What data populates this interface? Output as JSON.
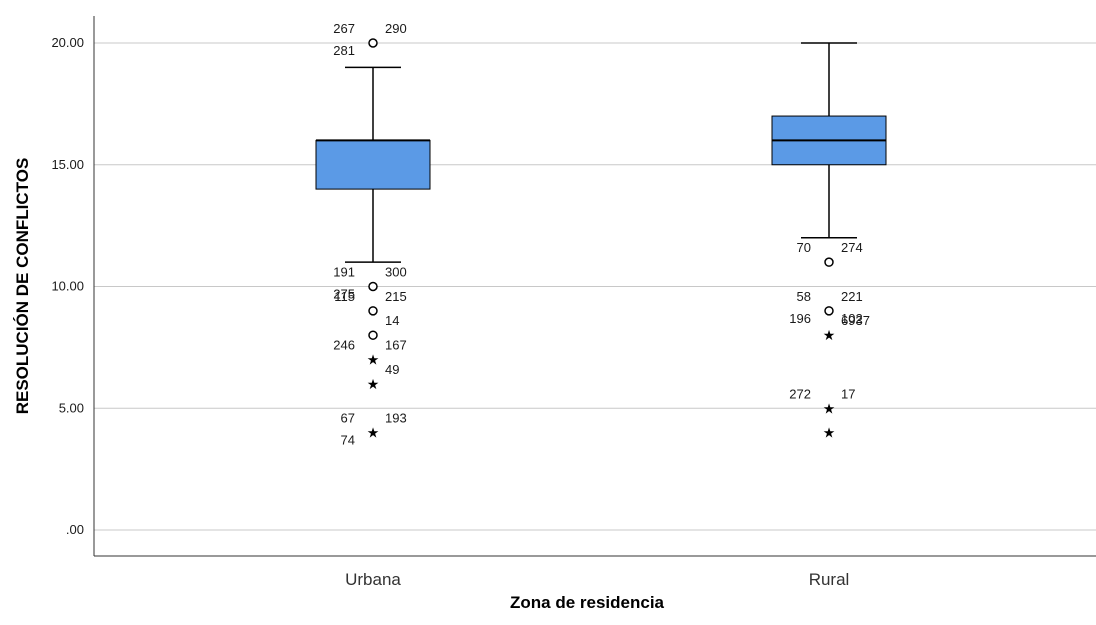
{
  "chart_data": {
    "type": "boxplot",
    "xlabel": "Zona de residencia",
    "ylabel": "RESOLUCIÓN DE CONFLICTOS",
    "ylim": [
      0,
      20.5
    ],
    "yticks": [
      {
        "value": 0,
        "label": ".00"
      },
      {
        "value": 5,
        "label": "5.00"
      },
      {
        "value": 10,
        "label": "10.00"
      },
      {
        "value": 15,
        "label": "15.00"
      },
      {
        "value": 20,
        "label": "20.00"
      }
    ],
    "grid": true,
    "box_color": "#5b9ae6",
    "categories": [
      "Urbana",
      "Rural"
    ],
    "boxes": [
      {
        "category": "Urbana",
        "whisker_low": 11,
        "q1": 14,
        "median": 16,
        "q3": 16,
        "whisker_high": 19,
        "outliers": [
          {
            "value": 20,
            "marker": "circle",
            "labels": [
              "290",
              "267",
              "281"
            ]
          },
          {
            "value": 10,
            "marker": "circle",
            "labels": [
              "300",
              "191",
              "275"
            ]
          },
          {
            "value": 9,
            "marker": "circle",
            "labels": [
              "215",
              "115"
            ]
          },
          {
            "value": 8,
            "marker": "circle",
            "labels": [
              "14"
            ]
          },
          {
            "value": 7,
            "marker": "star",
            "labels": [
              "167",
              "246"
            ]
          },
          {
            "value": 6,
            "marker": "star",
            "labels": [
              "49"
            ]
          },
          {
            "value": 4,
            "marker": "star",
            "labels": [
              "193",
              "67",
              "74"
            ]
          }
        ]
      },
      {
        "category": "Rural",
        "whisker_low": 12,
        "q1": 15,
        "median": 16,
        "q3": 17,
        "whisker_high": 20,
        "outliers": [
          {
            "value": 11,
            "marker": "circle",
            "labels": [
              "274",
              "70"
            ]
          },
          {
            "value": 9,
            "marker": "circle",
            "labels": [
              "221",
              "58",
              "196",
              "102"
            ]
          },
          {
            "value": 8,
            "marker": "star",
            "labels": [
              "6937"
            ]
          },
          {
            "value": 5,
            "marker": "star",
            "labels": [
              "17",
              "272"
            ]
          },
          {
            "value": 4,
            "marker": "star",
            "labels": []
          }
        ]
      }
    ]
  }
}
